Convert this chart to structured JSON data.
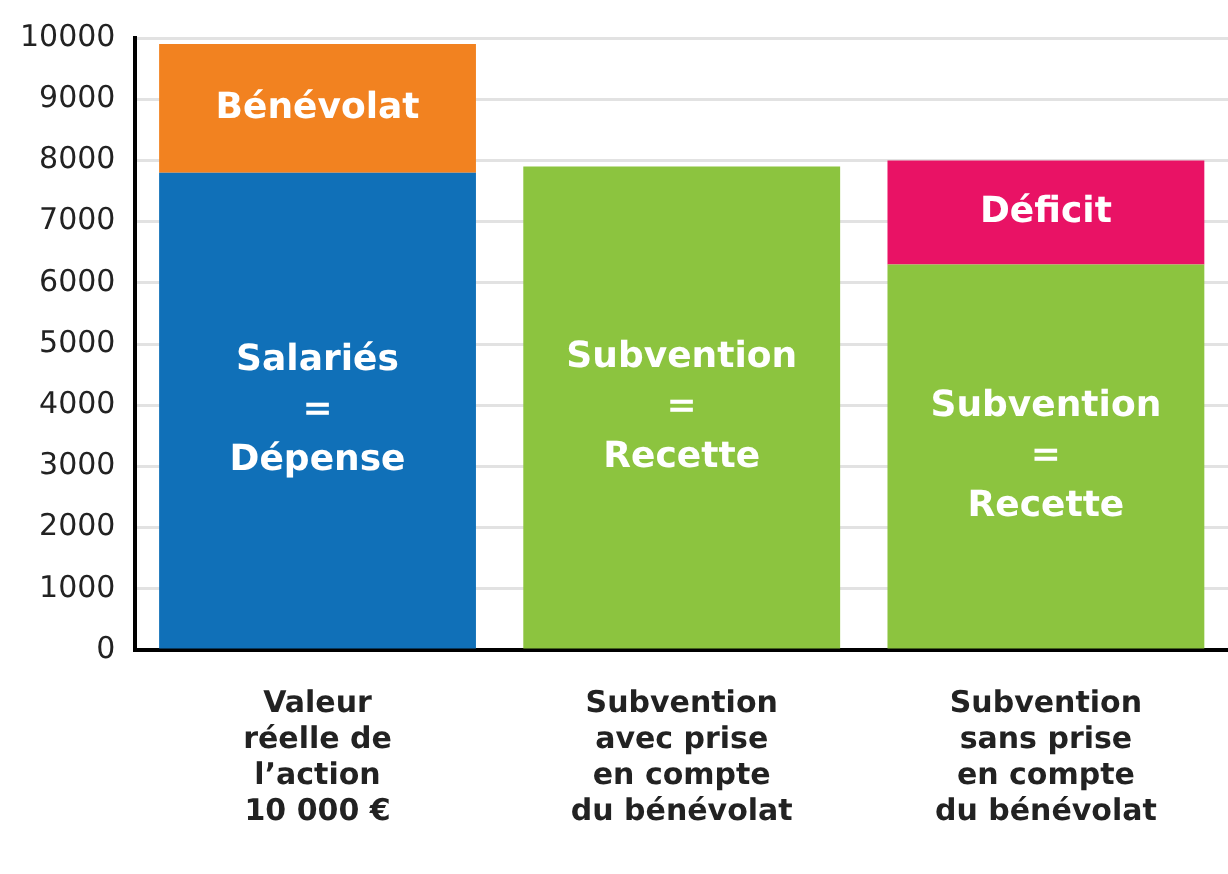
{
  "chart_data": {
    "type": "bar",
    "stacked": true,
    "categories": [
      "Valeur\nréelle de\nl’action\n10 000 €",
      "Subvention\navec prise\nen compte\ndu bénévolat",
      "Subvention\nsans prise\nen compte\ndu bénévolat"
    ],
    "series": [
      {
        "colors": [
          "#1070b8",
          "#8cc43f",
          "#8cc43f"
        ],
        "values": [
          7800,
          7900,
          6300
        ],
        "value_labels": [
          "Salariés\n=\nDépense",
          "Subvention\n=\nRecette",
          "Subvention\n=\nRecette"
        ]
      },
      {
        "colors": [
          "#f28220",
          null,
          "#e91265"
        ],
        "values": [
          2100,
          null,
          1700
        ],
        "value_labels": [
          "Bénévolat",
          null,
          "Déficit"
        ]
      }
    ],
    "ylim": [
      0,
      10000
    ],
    "yticks": [
      0,
      1000,
      2000,
      3000,
      4000,
      5000,
      6000,
      7000,
      8000,
      9000,
      10000
    ],
    "grid": "y",
    "legend": false
  }
}
